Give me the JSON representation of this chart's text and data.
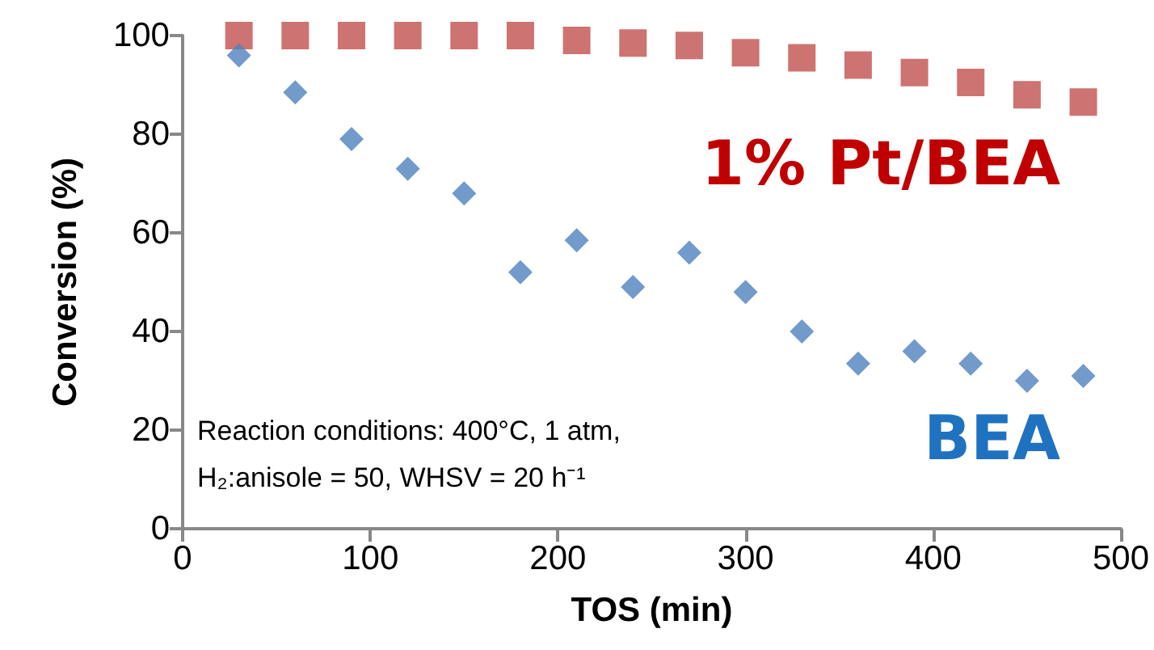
{
  "chart_data": {
    "type": "scatter",
    "xlabel": "TOS (min)",
    "ylabel": "Conversion (%)",
    "x": [
      30,
      60,
      90,
      120,
      150,
      180,
      210,
      240,
      270,
      300,
      330,
      360,
      390,
      420,
      450,
      480
    ],
    "series": [
      {
        "name": "1% Pt/BEA",
        "color": "#c0504d",
        "marker": "square",
        "values": [
          100,
          100,
          100,
          100,
          100,
          100,
          99,
          98.5,
          98,
          96.5,
          95.5,
          94,
          92.5,
          90.5,
          88,
          86.5
        ]
      },
      {
        "name": "BEA",
        "color": "#4f81bd",
        "marker": "diamond",
        "values": [
          96,
          88.5,
          79,
          73,
          68,
          52,
          58.5,
          49,
          56,
          48,
          40,
          33.5,
          36,
          33.5,
          30,
          31
        ]
      }
    ],
    "xlim": [
      0,
      500
    ],
    "xticks": [
      0,
      100,
      200,
      300,
      400,
      500
    ],
    "ylim": [
      0,
      100
    ],
    "yticks": [
      0,
      20,
      40,
      60,
      80,
      100
    ],
    "grid": false,
    "legend": false,
    "annotations": [
      "Reaction conditions: 400°C, 1 atm,\nH₂:anisole = 50, WHSV = 20 h⁻¹"
    ]
  }
}
